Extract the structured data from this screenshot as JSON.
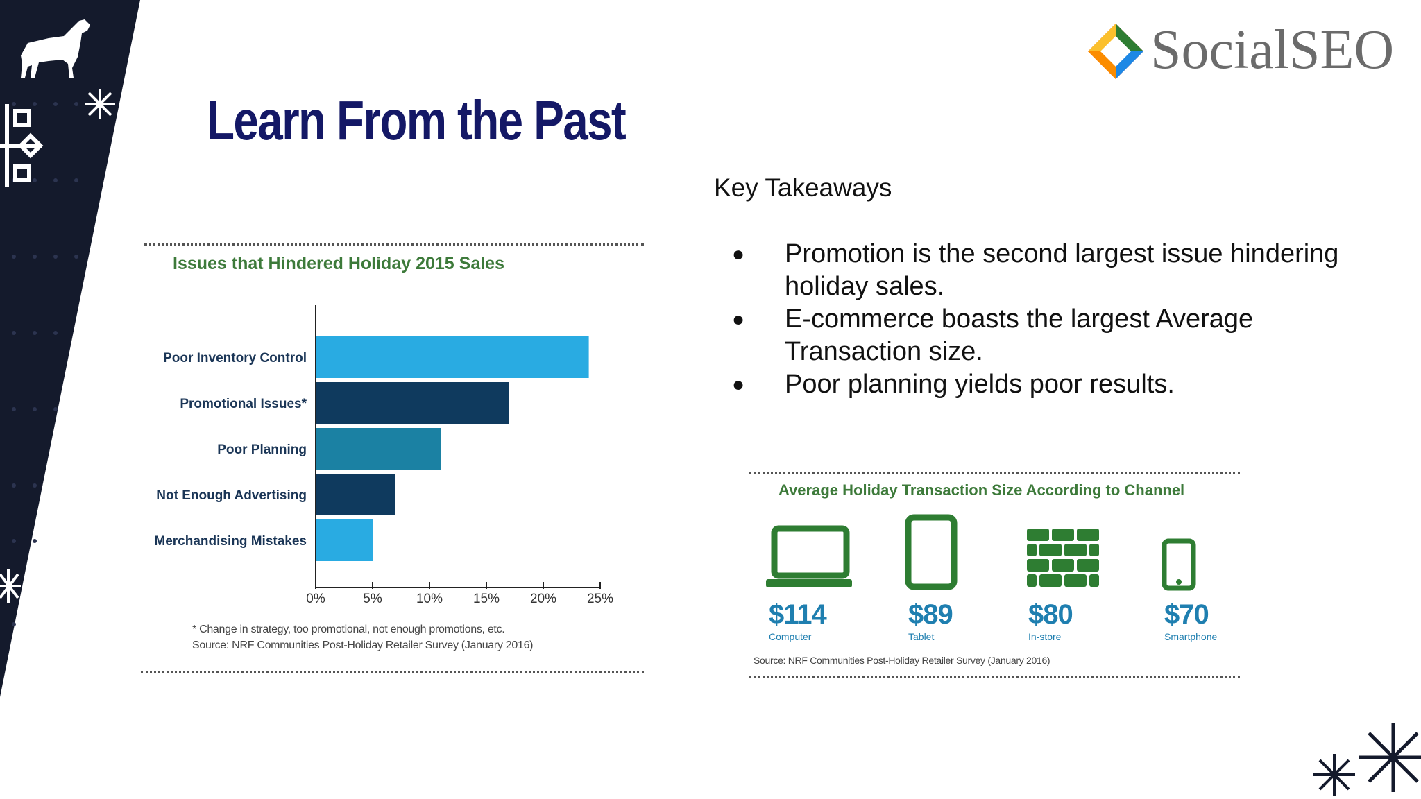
{
  "slide": {
    "title": "Learn From the Past",
    "logo_text": "SocialSEO",
    "takeaways_heading": "Key Takeaways",
    "takeaways": [
      "Promotion is the second largest issue hindering holiday sales.",
      "E-commerce boasts the largest Average Transaction size.",
      "Poor planning yields poor results."
    ],
    "bullet_glyph": "●"
  },
  "colors": {
    "title": "#141866",
    "chart_title": "#3d7a3a",
    "bar_light": "#29abe2",
    "bar_dark": "#0f3a5e",
    "bar_mid": "#1b81a3",
    "channel_icon": "#2e7d32",
    "channel_value": "#1f7fb0",
    "deco_band": "#141a2c"
  },
  "chart_data": {
    "type": "bar",
    "orientation": "horizontal",
    "title": "Issues that Hindered Holiday 2015 Sales",
    "categories": [
      "Poor Inventory Control",
      "Promotional Issues*",
      "Poor Planning",
      "Not Enough Advertising",
      "Merchandising Mistakes"
    ],
    "values": [
      24,
      17,
      11,
      7,
      5
    ],
    "bar_colors": [
      "#29abe2",
      "#0f3a5e",
      "#1b81a3",
      "#0f3a5e",
      "#29abe2"
    ],
    "xlim": [
      0,
      25
    ],
    "xticks": [
      "0%",
      "5%",
      "10%",
      "15%",
      "20%",
      "25%"
    ],
    "grid": false,
    "footnote": "* Change in strategy, too promotional, not enough promotions, etc.",
    "source": "Source: NRF Communities Post-Holiday Retailer Survey (January 2016)"
  },
  "channels": {
    "title": "Average Holiday Transaction Size According to Channel",
    "items": [
      {
        "value": "$114",
        "label": "Computer",
        "icon": "laptop-icon"
      },
      {
        "value": "$89",
        "label": "Tablet",
        "icon": "tablet-icon"
      },
      {
        "value": "$80",
        "label": "In-store",
        "icon": "brick-wall-icon"
      },
      {
        "value": "$70",
        "label": "Smartphone",
        "icon": "smartphone-icon"
      }
    ],
    "source": "Source: NRF Communities Post-Holiday Retailer Survey (January 2016)"
  }
}
